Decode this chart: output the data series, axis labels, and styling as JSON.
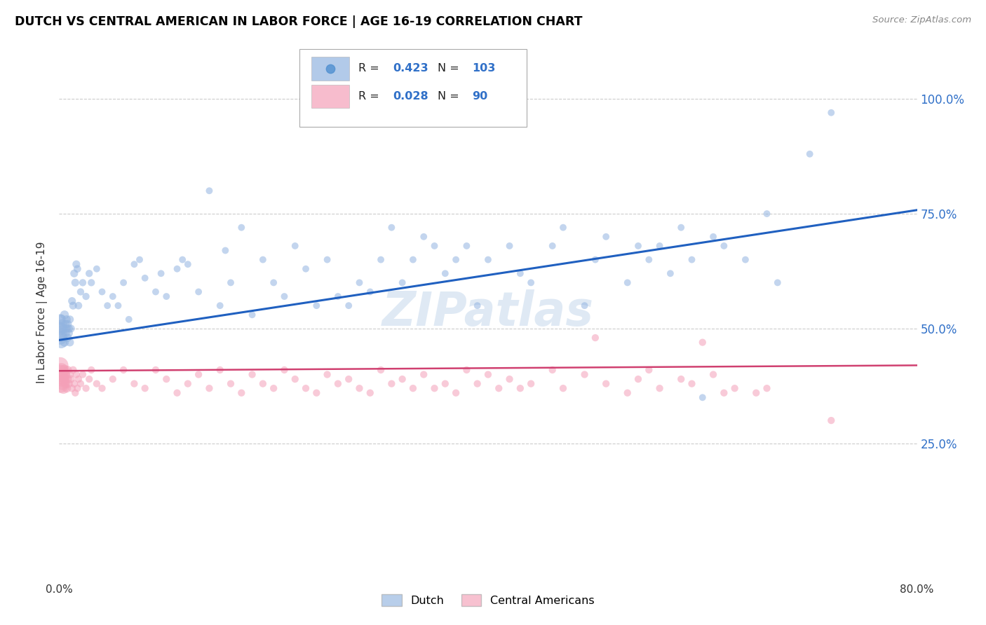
{
  "title": "DUTCH VS CENTRAL AMERICAN IN LABOR FORCE | AGE 16-19 CORRELATION CHART",
  "source": "Source: ZipAtlas.com",
  "ylabel": "In Labor Force | Age 16-19",
  "yticks": [
    "25.0%",
    "50.0%",
    "75.0%",
    "100.0%"
  ],
  "ytick_vals": [
    0.25,
    0.5,
    0.75,
    1.0
  ],
  "watermark": "ZIPatlas",
  "dutch_R": "0.423",
  "dutch_N": "103",
  "ca_R": "0.028",
  "ca_N": "90",
  "blue_color": "#92b4e0",
  "pink_color": "#f4a0b8",
  "blue_line_color": "#2060c0",
  "pink_line_color": "#d04070",
  "blue_tick_color": "#3070c8",
  "xlim": [
    0.0,
    0.8
  ],
  "ylim": [
    -0.05,
    1.12
  ],
  "dutch_trend_x": [
    0.0,
    0.8
  ],
  "dutch_trend_y": [
    0.475,
    0.758
  ],
  "ca_trend_x": [
    0.0,
    0.8
  ],
  "ca_trend_y": [
    0.408,
    0.42
  ],
  "dutch_scatter_x": [
    0.001,
    0.001,
    0.001,
    0.002,
    0.002,
    0.002,
    0.003,
    0.003,
    0.004,
    0.004,
    0.005,
    0.005,
    0.006,
    0.006,
    0.007,
    0.007,
    0.008,
    0.008,
    0.009,
    0.009,
    0.01,
    0.01,
    0.011,
    0.012,
    0.013,
    0.014,
    0.015,
    0.016,
    0.017,
    0.018,
    0.02,
    0.022,
    0.025,
    0.028,
    0.03,
    0.035,
    0.04,
    0.045,
    0.05,
    0.055,
    0.06,
    0.065,
    0.07,
    0.075,
    0.08,
    0.09,
    0.095,
    0.1,
    0.11,
    0.115,
    0.12,
    0.13,
    0.14,
    0.15,
    0.155,
    0.16,
    0.17,
    0.18,
    0.19,
    0.2,
    0.21,
    0.22,
    0.23,
    0.24,
    0.25,
    0.26,
    0.27,
    0.28,
    0.29,
    0.3,
    0.31,
    0.32,
    0.33,
    0.34,
    0.35,
    0.36,
    0.37,
    0.38,
    0.39,
    0.4,
    0.42,
    0.43,
    0.44,
    0.46,
    0.47,
    0.49,
    0.5,
    0.51,
    0.53,
    0.54,
    0.55,
    0.56,
    0.57,
    0.58,
    0.59,
    0.6,
    0.61,
    0.62,
    0.64,
    0.66,
    0.67,
    0.7,
    0.72
  ],
  "dutch_scatter_y": [
    0.48,
    0.5,
    0.52,
    0.47,
    0.5,
    0.52,
    0.49,
    0.51,
    0.48,
    0.5,
    0.53,
    0.47,
    0.49,
    0.51,
    0.5,
    0.52,
    0.48,
    0.51,
    0.49,
    0.5,
    0.47,
    0.52,
    0.5,
    0.56,
    0.55,
    0.62,
    0.6,
    0.64,
    0.63,
    0.55,
    0.58,
    0.6,
    0.57,
    0.62,
    0.6,
    0.63,
    0.58,
    0.55,
    0.57,
    0.55,
    0.6,
    0.52,
    0.64,
    0.65,
    0.61,
    0.58,
    0.62,
    0.57,
    0.63,
    0.65,
    0.64,
    0.58,
    0.8,
    0.55,
    0.67,
    0.6,
    0.72,
    0.53,
    0.65,
    0.6,
    0.57,
    0.68,
    0.63,
    0.55,
    0.65,
    0.57,
    0.55,
    0.6,
    0.58,
    0.65,
    0.72,
    0.6,
    0.65,
    0.7,
    0.68,
    0.62,
    0.65,
    0.68,
    0.55,
    0.65,
    0.68,
    0.62,
    0.6,
    0.68,
    0.72,
    0.55,
    0.65,
    0.7,
    0.6,
    0.68,
    0.65,
    0.68,
    0.62,
    0.72,
    0.65,
    0.35,
    0.7,
    0.68,
    0.65,
    0.75,
    0.6,
    0.88,
    0.97
  ],
  "dutch_sizes": [
    200,
    200,
    120,
    150,
    120,
    100,
    100,
    100,
    80,
    80,
    80,
    80,
    80,
    70,
    70,
    70,
    70,
    70,
    70,
    70,
    70,
    65,
    65,
    65,
    65,
    65,
    65,
    65,
    60,
    60,
    55,
    55,
    55,
    55,
    55,
    50,
    50,
    50,
    50,
    50,
    50,
    50,
    50,
    50,
    50,
    50,
    50,
    50,
    50,
    50,
    50,
    50,
    50,
    50,
    50,
    50,
    50,
    50,
    50,
    50,
    50,
    50,
    50,
    50,
    50,
    50,
    50,
    50,
    50,
    50,
    50,
    50,
    50,
    50,
    50,
    50,
    50,
    50,
    50,
    50,
    50,
    50,
    50,
    50,
    50,
    50,
    50,
    50,
    50,
    50,
    50,
    50,
    50,
    50,
    50,
    50,
    50,
    50,
    50,
    50,
    50,
    50,
    50
  ],
  "ca_scatter_x": [
    0.001,
    0.001,
    0.001,
    0.002,
    0.002,
    0.003,
    0.003,
    0.004,
    0.005,
    0.005,
    0.006,
    0.006,
    0.007,
    0.008,
    0.008,
    0.009,
    0.01,
    0.011,
    0.012,
    0.013,
    0.014,
    0.015,
    0.016,
    0.017,
    0.018,
    0.02,
    0.022,
    0.025,
    0.028,
    0.03,
    0.035,
    0.04,
    0.05,
    0.06,
    0.07,
    0.08,
    0.09,
    0.1,
    0.11,
    0.12,
    0.13,
    0.14,
    0.15,
    0.16,
    0.17,
    0.18,
    0.19,
    0.2,
    0.21,
    0.22,
    0.23,
    0.24,
    0.25,
    0.26,
    0.27,
    0.28,
    0.29,
    0.3,
    0.31,
    0.32,
    0.33,
    0.34,
    0.35,
    0.36,
    0.37,
    0.38,
    0.39,
    0.4,
    0.41,
    0.42,
    0.43,
    0.44,
    0.46,
    0.47,
    0.49,
    0.5,
    0.51,
    0.53,
    0.54,
    0.55,
    0.56,
    0.58,
    0.59,
    0.6,
    0.61,
    0.62,
    0.63,
    0.65,
    0.66,
    0.72
  ],
  "ca_scatter_y": [
    0.4,
    0.38,
    0.42,
    0.39,
    0.41,
    0.38,
    0.4,
    0.37,
    0.41,
    0.39,
    0.38,
    0.4,
    0.37,
    0.39,
    0.41,
    0.38,
    0.4,
    0.39,
    0.37,
    0.41,
    0.38,
    0.36,
    0.4,
    0.37,
    0.39,
    0.38,
    0.4,
    0.37,
    0.39,
    0.41,
    0.38,
    0.37,
    0.39,
    0.41,
    0.38,
    0.37,
    0.41,
    0.39,
    0.36,
    0.38,
    0.4,
    0.37,
    0.41,
    0.38,
    0.36,
    0.4,
    0.38,
    0.37,
    0.41,
    0.39,
    0.37,
    0.36,
    0.4,
    0.38,
    0.39,
    0.37,
    0.36,
    0.41,
    0.38,
    0.39,
    0.37,
    0.4,
    0.37,
    0.38,
    0.36,
    0.41,
    0.38,
    0.4,
    0.37,
    0.39,
    0.37,
    0.38,
    0.41,
    0.37,
    0.4,
    0.48,
    0.38,
    0.36,
    0.39,
    0.41,
    0.37,
    0.39,
    0.38,
    0.47,
    0.4,
    0.36,
    0.37,
    0.36,
    0.37,
    0.3
  ],
  "ca_sizes": [
    400,
    350,
    280,
    220,
    200,
    170,
    150,
    130,
    110,
    100,
    90,
    85,
    80,
    75,
    72,
    70,
    65,
    65,
    60,
    60,
    60,
    55,
    55,
    55,
    55,
    55,
    55,
    55,
    55,
    55,
    55,
    55,
    55,
    55,
    55,
    55,
    55,
    55,
    55,
    55,
    55,
    55,
    55,
    55,
    55,
    55,
    55,
    55,
    55,
    55,
    55,
    55,
    55,
    55,
    55,
    55,
    55,
    55,
    55,
    55,
    55,
    55,
    55,
    55,
    55,
    55,
    55,
    55,
    55,
    55,
    55,
    55,
    55,
    55,
    55,
    55,
    55,
    55,
    55,
    55,
    55,
    55,
    55,
    55,
    55,
    55,
    55,
    55,
    55,
    55
  ]
}
